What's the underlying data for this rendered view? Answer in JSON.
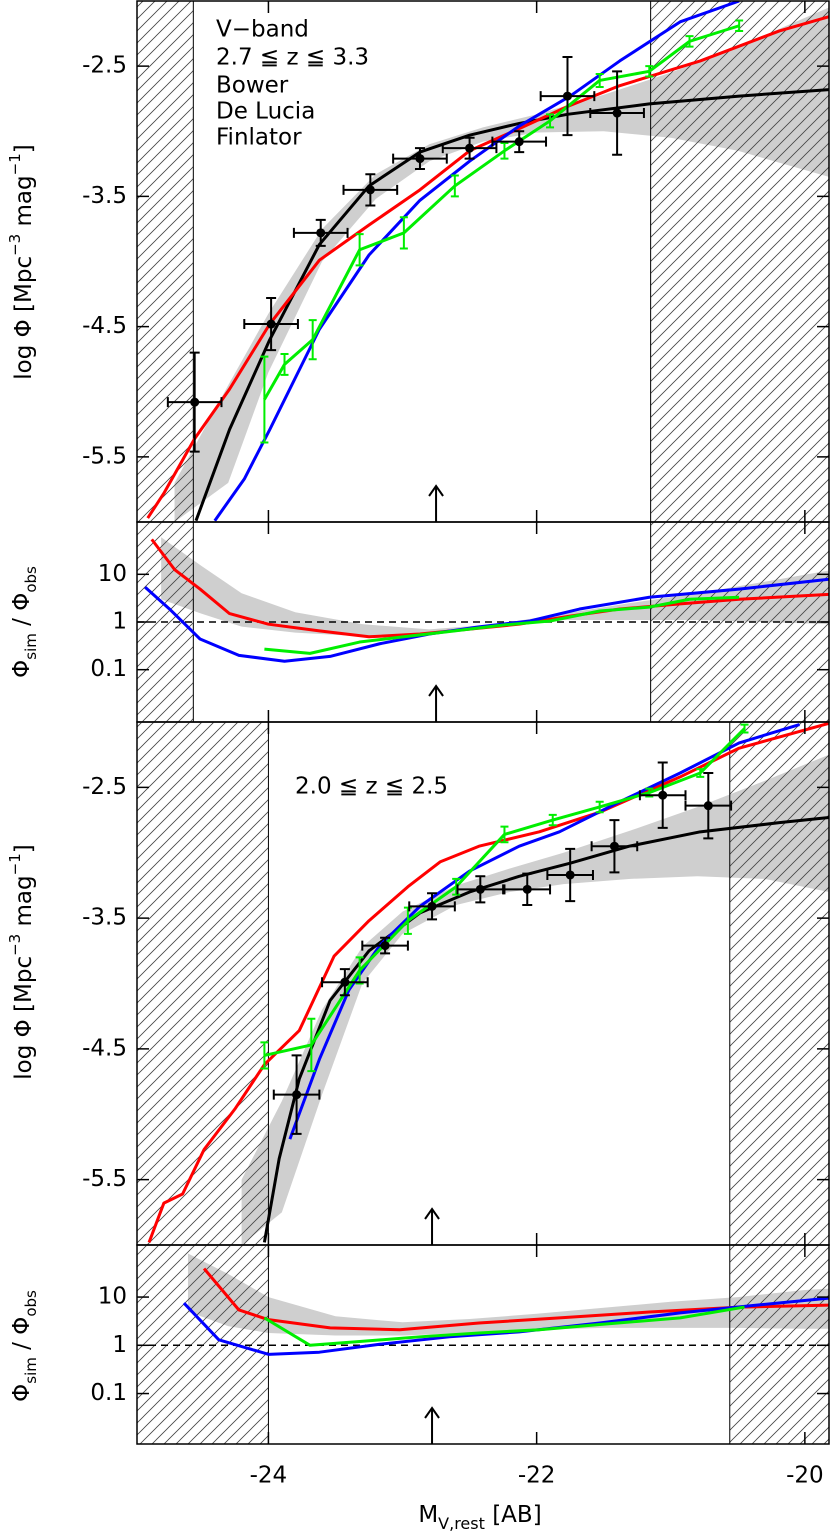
{
  "chart_data": [
    {
      "type": "line",
      "xlim": [
        -24.98,
        -19.82
      ],
      "ylim": [
        -6.0,
        -2.0
      ],
      "xticks": [
        -24,
        -22,
        -20
      ],
      "yticks": [
        -2.5,
        -3.5,
        -4.5,
        -5.5
      ],
      "annotations": [
        "V−band",
        "2.7 ≦ z ≦ 3.3"
      ],
      "ylabel": [
        "log Φ [Mpc",
        "−3",
        " mag",
        "−1",
        "]"
      ],
      "xcut": [
        -24.56,
        -21.15
      ],
      "arrow_x": -22.75,
      "band": {
        "x": [
          -24.7,
          -24.3,
          -24.0,
          -23.6,
          -23.2,
          -22.8,
          -22.4,
          -22.0,
          -21.5,
          -21.0,
          -20.5,
          -19.82
        ],
        "upper": [
          -5.7,
          -4.95,
          -4.4,
          -3.75,
          -3.33,
          -3.1,
          -2.97,
          -2.87,
          -2.72,
          -2.55,
          -2.35,
          -2.05
        ],
        "lower": [
          -6.0,
          -5.7,
          -4.85,
          -4.0,
          -3.52,
          -3.23,
          -3.08,
          -3.01,
          -3.0,
          -3.05,
          -3.15,
          -3.35
        ]
      },
      "series": [
        {
          "color": "#000000",
          "x": [
            -24.54,
            -24.29,
            -23.99,
            -23.62,
            -23.25,
            -22.87,
            -22.5,
            -22.13,
            -21.77,
            -21.16,
            -20.49,
            -19.82
          ],
          "values": [
            -5.99,
            -5.29,
            -4.6,
            -3.87,
            -3.42,
            -3.16,
            -3.03,
            -2.94,
            -2.87,
            -2.79,
            -2.73,
            -2.68
          ]
        },
        {
          "name": "Bower",
          "color": "#ff0000",
          "x": [
            -24.9,
            -24.78,
            -24.55,
            -24.29,
            -23.99,
            -23.62,
            -23.25,
            -22.87,
            -22.5,
            -22.13,
            -21.77,
            -21.38,
            -20.78,
            -20.19,
            -19.82
          ],
          "values": [
            -5.97,
            -5.78,
            -5.36,
            -4.98,
            -4.48,
            -3.99,
            -3.72,
            -3.45,
            -3.15,
            -2.98,
            -2.81,
            -2.65,
            -2.46,
            -2.23,
            -2.12
          ]
        },
        {
          "name": "De Lucia",
          "color": "#0000ff",
          "x": [
            -24.4,
            -24.18,
            -23.99,
            -23.62,
            -23.25,
            -22.87,
            -22.5,
            -22.13,
            -21.75,
            -21.38,
            -20.93,
            -20.49
          ],
          "values": [
            -5.99,
            -5.67,
            -5.29,
            -4.52,
            -3.95,
            -3.53,
            -3.23,
            -2.96,
            -2.73,
            -2.46,
            -2.16,
            -2.0
          ]
        },
        {
          "name": "Finlator",
          "color": "#00ee00",
          "x": [
            -24.03,
            -23.88,
            -23.67,
            -23.32,
            -22.99,
            -22.61,
            -22.24,
            -21.9,
            -21.53,
            -21.16,
            -20.86,
            -20.49
          ],
          "values": [
            -5.06,
            -4.79,
            -4.6,
            -3.91,
            -3.78,
            -3.42,
            -3.15,
            -2.92,
            -2.61,
            -2.54,
            -2.31,
            -2.19
          ],
          "yerr": [
            0.33,
            0.08,
            0.15,
            0.12,
            0.12,
            0.08,
            0.06,
            0.05,
            0.05,
            0.04,
            0.04,
            0.04
          ]
        }
      ],
      "points": {
        "x": [
          -24.55,
          -23.98,
          -23.61,
          -23.24,
          -22.87,
          -22.5,
          -22.13,
          -21.77,
          -21.4
        ],
        "values": [
          -5.08,
          -4.48,
          -3.78,
          -3.45,
          -3.21,
          -3.13,
          -3.08,
          -2.73,
          -2.86
        ],
        "xerr": [
          0.2,
          0.2,
          0.2,
          0.2,
          0.2,
          0.2,
          0.2,
          0.2,
          0.2
        ],
        "yerr": [
          0.38,
          0.2,
          0.1,
          0.12,
          0.08,
          0.08,
          0.08,
          0.3,
          0.32
        ]
      }
    },
    {
      "type": "line",
      "log": true,
      "xlim": [
        -24.98,
        -19.82
      ],
      "ylim": [
        0.008,
        125
      ],
      "xticks": [
        -24,
        -22,
        -20
      ],
      "yticks": [
        10,
        1,
        0.1
      ],
      "ylabel": [
        "Φ",
        "sim",
        " / Φ",
        "obs"
      ],
      "refline": 1,
      "xcut": [
        -24.56,
        -21.15
      ],
      "arrow_x": -22.75,
      "band": {
        "x": [
          -24.8,
          -24.5,
          -24.2,
          -23.8,
          -23.3,
          -22.8,
          -22.3,
          -21.8,
          -21.3,
          -20.8,
          -20.3,
          -19.82
        ],
        "upper": [
          60,
          15,
          4,
          1.6,
          0.9,
          0.7,
          0.9,
          1.5,
          2.5,
          4,
          7,
          12
        ],
        "lower": [
          3,
          1.5,
          0.8,
          0.6,
          0.5,
          0.55,
          0.8,
          1.1,
          1.1,
          1.1,
          1.0,
          0.9
        ]
      },
      "series": [
        {
          "color": "#ff0000",
          "x": [
            -24.87,
            -24.7,
            -24.51,
            -24.29,
            -24.0,
            -23.62,
            -23.25,
            -22.87,
            -22.5,
            -22.13,
            -21.75,
            -21.38,
            -20.93,
            -20.49,
            -19.82
          ],
          "values": [
            54,
            12.6,
            4.9,
            1.5,
            0.9,
            0.65,
            0.49,
            0.56,
            0.71,
            0.9,
            1.33,
            1.87,
            2.4,
            3.0,
            3.8
          ]
        },
        {
          "color": "#0000ff",
          "x": [
            -24.92,
            -24.74,
            -24.51,
            -24.22,
            -23.88,
            -23.54,
            -23.17,
            -22.8,
            -22.43,
            -22.05,
            -21.68,
            -21.16,
            -20.49,
            -19.82
          ],
          "values": [
            5.4,
            1.9,
            0.44,
            0.2,
            0.15,
            0.19,
            0.35,
            0.56,
            0.79,
            1.05,
            1.87,
            3.3,
            4.9,
            7.9
          ]
        },
        {
          "color": "#00ee00",
          "x": [
            -24.03,
            -23.69,
            -23.32,
            -22.99,
            -22.61,
            -22.24,
            -21.9,
            -21.53,
            -21.16,
            -20.86,
            -20.49
          ],
          "values": [
            0.27,
            0.22,
            0.38,
            0.49,
            0.65,
            0.87,
            1.05,
            1.7,
            2.05,
            3.0,
            3.3
          ]
        }
      ]
    },
    {
      "type": "line",
      "xlim": [
        -24.98,
        -19.82
      ],
      "ylim": [
        -6.0,
        -2.0
      ],
      "xticks": [
        -24,
        -22,
        -20
      ],
      "yticks": [
        -2.5,
        -3.5,
        -4.5,
        -5.5
      ],
      "annotations": [
        "2.0 ≦ z ≦ 2.5"
      ],
      "ylabel": [
        "log Φ [Mpc",
        "−3",
        " mag",
        "−1",
        "]"
      ],
      "xcut": [
        -24.0,
        -20.56
      ],
      "arrow_x": -22.78,
      "band": {
        "x": [
          -24.2,
          -23.9,
          -23.6,
          -23.3,
          -23.0,
          -22.6,
          -22.2,
          -21.8,
          -21.3,
          -20.8,
          -20.3,
          -19.82
        ],
        "upper": [
          -5.5,
          -4.9,
          -4.2,
          -3.72,
          -3.45,
          -3.25,
          -3.12,
          -3.0,
          -2.83,
          -2.65,
          -2.45,
          -2.25
        ],
        "lower": [
          -6.0,
          -5.75,
          -4.85,
          -4.0,
          -3.62,
          -3.4,
          -3.3,
          -3.24,
          -3.2,
          -3.18,
          -3.2,
          -3.3
        ]
      },
      "series": [
        {
          "color": "#000000",
          "x": [
            -24.03,
            -23.92,
            -23.77,
            -23.54,
            -23.25,
            -22.87,
            -22.5,
            -22.13,
            -21.75,
            -21.31,
            -20.78,
            -20.19,
            -19.82
          ],
          "values": [
            -5.98,
            -5.34,
            -4.73,
            -4.13,
            -3.75,
            -3.46,
            -3.3,
            -3.18,
            -3.08,
            -2.95,
            -2.84,
            -2.77,
            -2.73
          ]
        },
        {
          "color": "#ff0000",
          "x": [
            -24.89,
            -24.78,
            -24.64,
            -24.48,
            -24.25,
            -24.03,
            -23.77,
            -23.51,
            -23.25,
            -22.96,
            -22.72,
            -22.43,
            -21.98,
            -21.53,
            -20.93,
            -20.49,
            -19.82
          ],
          "values": [
            -5.98,
            -5.68,
            -5.61,
            -5.27,
            -4.96,
            -4.62,
            -4.36,
            -3.79,
            -3.52,
            -3.26,
            -3.07,
            -2.95,
            -2.84,
            -2.69,
            -2.42,
            -2.2,
            -2.01
          ]
        },
        {
          "color": "#0000ff",
          "x": [
            -23.84,
            -23.62,
            -23.4,
            -23.17,
            -22.87,
            -22.5,
            -22.13,
            -21.83,
            -21.38,
            -20.93,
            -20.49,
            -20.04
          ],
          "values": [
            -5.19,
            -4.58,
            -4.05,
            -3.71,
            -3.41,
            -3.14,
            -2.95,
            -2.84,
            -2.61,
            -2.39,
            -2.16,
            -2.02
          ]
        },
        {
          "color": "#00ee00",
          "x": [
            -24.03,
            -23.68,
            -23.32,
            -22.96,
            -22.6,
            -22.24,
            -21.88,
            -21.53,
            -21.16,
            -20.78,
            -20.45
          ],
          "values": [
            -4.55,
            -4.47,
            -3.9,
            -3.52,
            -3.26,
            -2.86,
            -2.75,
            -2.65,
            -2.54,
            -2.39,
            -2.05
          ],
          "yerr": [
            0.1,
            0.2,
            0.1,
            0.1,
            0.06,
            0.06,
            0.04,
            0.04,
            0.03,
            0.03,
            0.03
          ]
        }
      ],
      "points": {
        "x": [
          -23.79,
          -23.43,
          -23.13,
          -22.78,
          -22.42,
          -22.07,
          -21.75,
          -21.42,
          -21.06,
          -20.72
        ],
        "values": [
          -4.85,
          -3.99,
          -3.71,
          -3.41,
          -3.28,
          -3.28,
          -3.17,
          -2.95,
          -2.56,
          -2.64
        ],
        "xerr": [
          0.17,
          0.17,
          0.17,
          0.17,
          0.17,
          0.17,
          0.17,
          0.17,
          0.17,
          0.17
        ],
        "yerr": [
          0.3,
          0.1,
          0.06,
          0.1,
          0.1,
          0.12,
          0.2,
          0.2,
          0.25,
          0.25
        ]
      }
    },
    {
      "type": "line",
      "log": true,
      "xlim": [
        -24.98,
        -19.82
      ],
      "ylim": [
        0.009,
        120
      ],
      "xticks": [
        -24,
        -22,
        -20
      ],
      "yticks": [
        10,
        1,
        0.1
      ],
      "ylabel": [
        "Φ",
        "sim",
        " / Φ",
        "obs"
      ],
      "refline": 1,
      "xlabel": [
        "M",
        "V,rest",
        " [AB]"
      ],
      "xcut": [
        -24.0,
        -20.56
      ],
      "arrow_x": -22.78,
      "band": {
        "x": [
          -24.6,
          -24.3,
          -24.0,
          -23.5,
          -23.0,
          -22.5,
          -22.0,
          -21.5,
          -21.0,
          -20.5,
          -20.0,
          -19.82
        ],
        "upper": [
          80,
          30,
          10,
          4,
          3,
          3.5,
          4.5,
          6,
          8,
          10,
          14,
          15
        ],
        "lower": [
          5,
          2.5,
          1.8,
          1.6,
          1.6,
          1.8,
          2.1,
          2.3,
          2.3,
          2.3,
          2.2,
          2.2
        ]
      },
      "series": [
        {
          "color": "#ff0000",
          "x": [
            -24.48,
            -24.22,
            -24.0,
            -23.54,
            -23.02,
            -22.43,
            -21.83,
            -21.16,
            -20.49,
            -19.82
          ],
          "values": [
            39,
            5.4,
            3.4,
            2.3,
            2.1,
            2.9,
            3.7,
            4.9,
            6.2,
            6.8
          ]
        },
        {
          "color": "#0000ff",
          "x": [
            -24.63,
            -24.37,
            -24.0,
            -23.62,
            -23.17,
            -22.65,
            -22.13,
            -21.53,
            -20.93,
            -20.34,
            -19.82
          ],
          "values": [
            7.5,
            1.3,
            0.65,
            0.72,
            1.05,
            1.5,
            1.9,
            2.9,
            4.7,
            6.9,
            9.5
          ]
        },
        {
          "color": "#00ee00",
          "x": [
            -24.03,
            -23.69,
            -23.32,
            -22.87,
            -22.43,
            -21.98,
            -21.53,
            -20.93,
            -20.45
          ],
          "values": [
            3.7,
            1.0,
            1.2,
            1.5,
            1.8,
            2.1,
            2.7,
            3.7,
            6.2
          ]
        }
      ]
    }
  ]
}
